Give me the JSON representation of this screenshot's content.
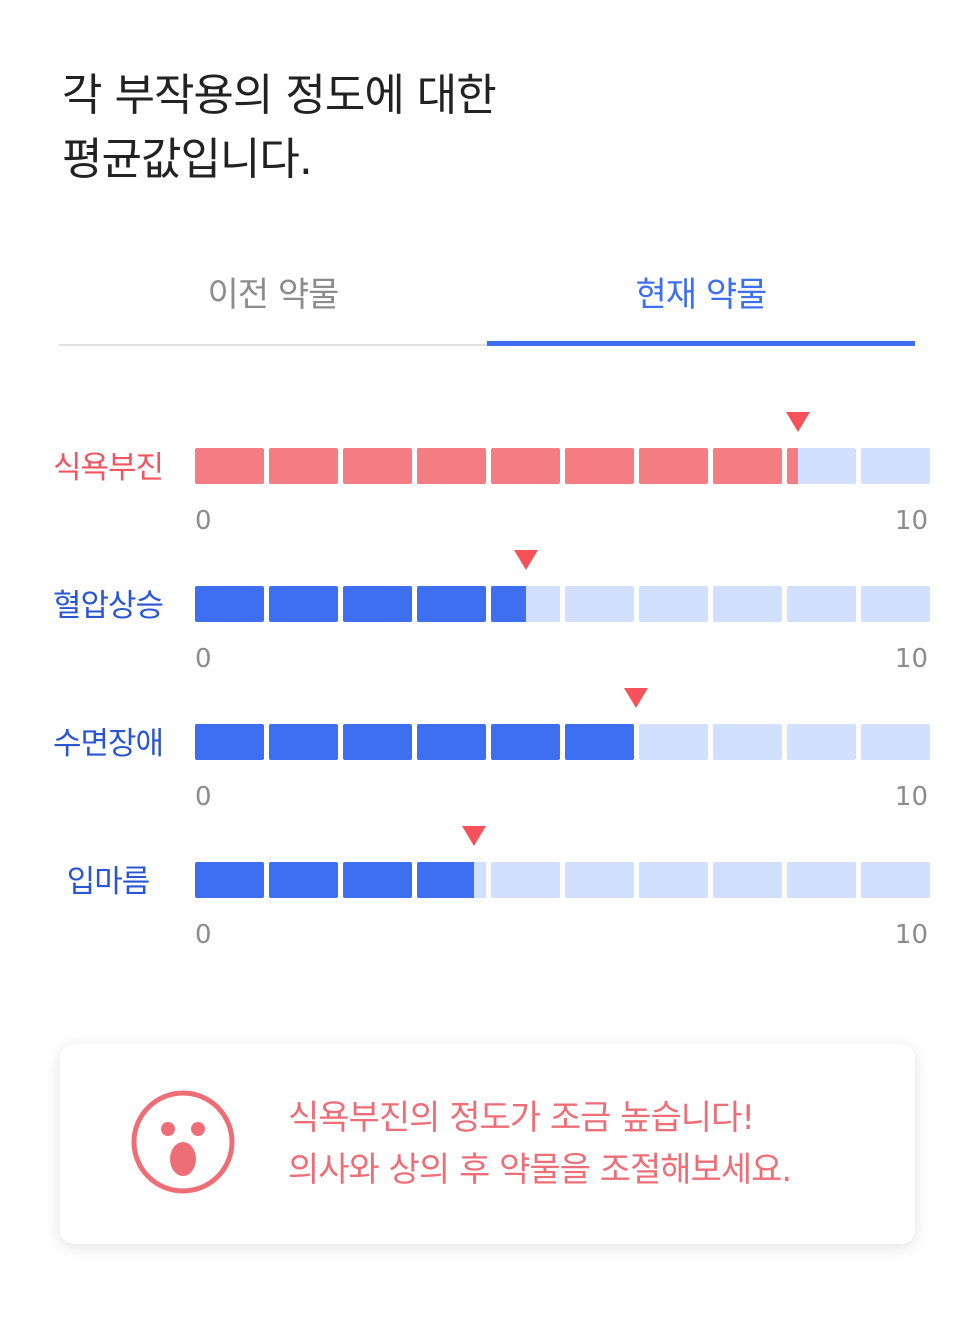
{
  "heading": {
    "line1": "각 부작용의 정도에 대한",
    "line2": "평균값입니다."
  },
  "tabs": [
    {
      "label": "이전 약물",
      "active": false
    },
    {
      "label": "현재 약물",
      "active": true
    }
  ],
  "scale": {
    "min": "0",
    "max": "10"
  },
  "side_effects": [
    {
      "label": "식욕부진",
      "value": 8.2,
      "color": "#f47c83",
      "label_color": "#f05560"
    },
    {
      "label": "혈압상승",
      "value": 4.5,
      "color": "#3d6ff0",
      "label_color": "#2b56d2"
    },
    {
      "label": "수면장애",
      "value": 6.0,
      "color": "#3d6ff0",
      "label_color": "#2b56d2"
    },
    {
      "label": "입마름",
      "value": 3.8,
      "color": "#3d6ff0",
      "label_color": "#2b56d2"
    }
  ],
  "colors": {
    "accent": "#3d6ff0",
    "alert": "#f05560",
    "marker": "#f5525b",
    "empty_segment": "#d2e0ff"
  },
  "alert_card": {
    "icon": "surprised-face-icon",
    "line1": "식욕부진의 정도가 조금 높습니다!",
    "line2": "의사와 상의 후 약물을 조절해보세요."
  }
}
